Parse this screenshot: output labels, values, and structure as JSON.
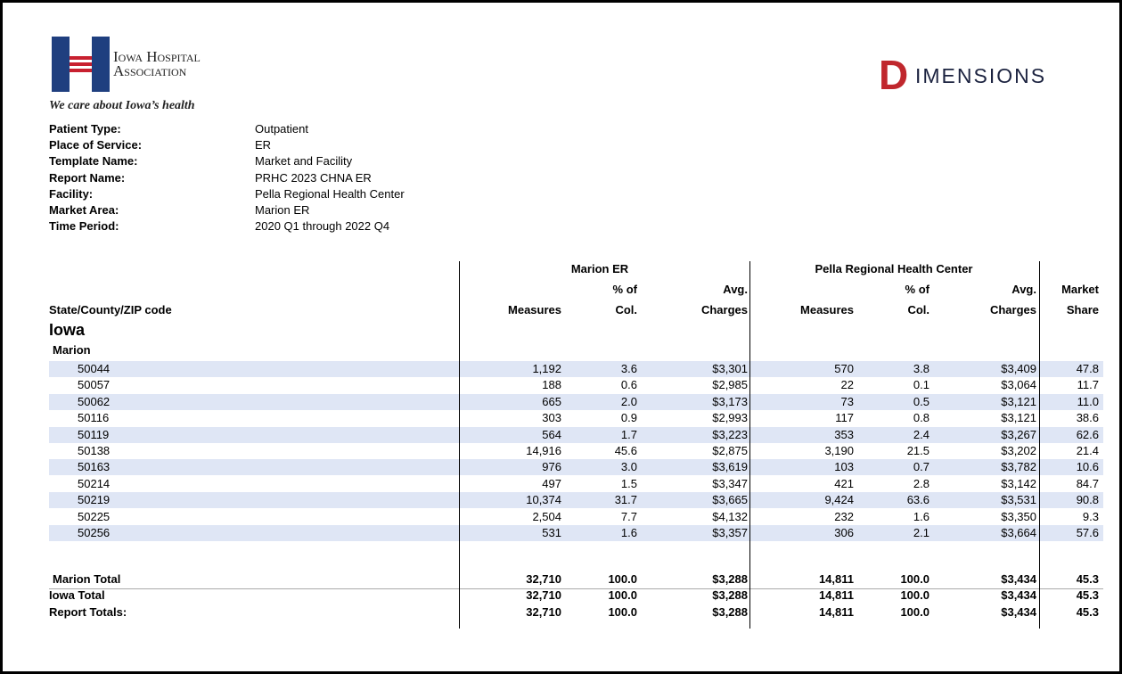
{
  "header": {
    "logo_lines": [
      "Iowa Hospital",
      "Association"
    ],
    "tagline": "We care about Iowa’s health",
    "brand": {
      "mark": "D",
      "rest": "IMENSIONS"
    }
  },
  "report_info": [
    {
      "label": "Patient Type:",
      "value": "Outpatient"
    },
    {
      "label": "Place of Service:",
      "value": "ER"
    },
    {
      "label": "Template Name:",
      "value": "Market and Facility"
    },
    {
      "label": "Report Name:",
      "value": "PRHC 2023 CHNA ER"
    },
    {
      "label": "Facility:",
      "value": "Pella Regional Health Center"
    },
    {
      "label": "Market Area:",
      "value": "Marion ER"
    },
    {
      "label": "Time Period:",
      "value": "2020 Q1 through 2022 Q4"
    }
  ],
  "table": {
    "group_headers": [
      "Marion ER",
      "Pella Regional Health Center"
    ],
    "column_headers": [
      [
        "State/County/ZIP code"
      ],
      [
        "Measures"
      ],
      [
        "% of",
        "Col."
      ],
      [
        "Avg.",
        "Charges"
      ],
      [
        "Measures"
      ],
      [
        "% of",
        "Col."
      ],
      [
        "Avg.",
        "Charges"
      ],
      [
        "Market",
        "Share"
      ]
    ],
    "state": "Iowa",
    "county": "Marion",
    "rows": [
      [
        "50044",
        "1,192",
        "3.6",
        "$3,301",
        "570",
        "3.8",
        "$3,409",
        "47.8"
      ],
      [
        "50057",
        "188",
        "0.6",
        "$2,985",
        "22",
        "0.1",
        "$3,064",
        "11.7"
      ],
      [
        "50062",
        "665",
        "2.0",
        "$3,173",
        "73",
        "0.5",
        "$3,121",
        "11.0"
      ],
      [
        "50116",
        "303",
        "0.9",
        "$2,993",
        "117",
        "0.8",
        "$3,121",
        "38.6"
      ],
      [
        "50119",
        "564",
        "1.7",
        "$3,223",
        "353",
        "2.4",
        "$3,267",
        "62.6"
      ],
      [
        "50138",
        "14,916",
        "45.6",
        "$2,875",
        "3,190",
        "21.5",
        "$3,202",
        "21.4"
      ],
      [
        "50163",
        "976",
        "3.0",
        "$3,619",
        "103",
        "0.7",
        "$3,782",
        "10.6"
      ],
      [
        "50214",
        "497",
        "1.5",
        "$3,347",
        "421",
        "2.8",
        "$3,142",
        "84.7"
      ],
      [
        "50219",
        "10,374",
        "31.7",
        "$3,665",
        "9,424",
        "63.6",
        "$3,531",
        "90.8"
      ],
      [
        "50225",
        "2,504",
        "7.7",
        "$4,132",
        "232",
        "1.6",
        "$3,350",
        "9.3"
      ],
      [
        "50256",
        "531",
        "1.6",
        "$3,357",
        "306",
        "2.1",
        "$3,664",
        "57.6"
      ]
    ],
    "totals": [
      [
        "Marion Total",
        "32,710",
        "100.0",
        "$3,288",
        "14,811",
        "100.0",
        "$3,434",
        "45.3"
      ],
      [
        "Iowa Total",
        "32,710",
        "100.0",
        "$3,288",
        "14,811",
        "100.0",
        "$3,434",
        "45.3"
      ],
      [
        "Report Totals:",
        "32,710",
        "100.0",
        "$3,288",
        "14,811",
        "100.0",
        "$3,434",
        "45.3"
      ]
    ]
  }
}
